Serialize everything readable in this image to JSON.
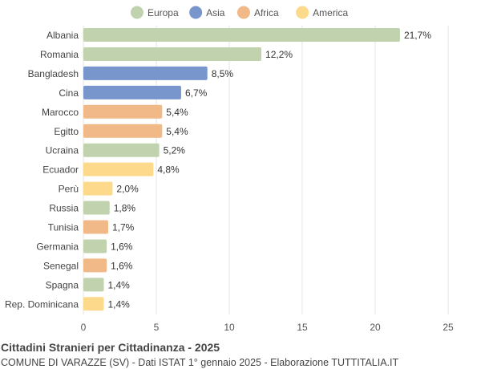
{
  "chart_data": {
    "type": "bar",
    "orientation": "horizontal",
    "title": "Cittadini Stranieri per Cittadinanza - 2025",
    "subtitle": "COMUNE DI VARAZZE (SV) - Dati ISTAT 1° gennaio 2025 - Elaborazione TUTTITALIA.IT",
    "xlim": [
      0,
      25
    ],
    "xticks": [
      0,
      5,
      10,
      15,
      20,
      25
    ],
    "grid": true,
    "legend_position": "top",
    "legend": [
      {
        "name": "Europa",
        "color": "#c1d3ae"
      },
      {
        "name": "Asia",
        "color": "#7896cc"
      },
      {
        "name": "Africa",
        "color": "#f0b987"
      },
      {
        "name": "America",
        "color": "#fdd98c"
      }
    ],
    "categories": [
      "Albania",
      "Romania",
      "Bangladesh",
      "Cina",
      "Marocco",
      "Egitto",
      "Ucraina",
      "Ecuador",
      "Perù",
      "Russia",
      "Tunisia",
      "Germania",
      "Senegal",
      "Spagna",
      "Rep. Dominicana"
    ],
    "values": [
      21.7,
      12.2,
      8.5,
      6.7,
      5.4,
      5.4,
      5.2,
      4.8,
      2.0,
      1.8,
      1.7,
      1.6,
      1.6,
      1.4,
      1.4
    ],
    "value_labels": [
      "21,7%",
      "12,2%",
      "8,5%",
      "6,7%",
      "5,4%",
      "5,4%",
      "5,2%",
      "4,8%",
      "2,0%",
      "1,8%",
      "1,7%",
      "1,6%",
      "1,6%",
      "1,4%",
      "1,4%"
    ],
    "groups": [
      "Europa",
      "Europa",
      "Asia",
      "Asia",
      "Africa",
      "Africa",
      "Europa",
      "America",
      "America",
      "Europa",
      "Africa",
      "Europa",
      "Africa",
      "Europa",
      "America"
    ]
  }
}
